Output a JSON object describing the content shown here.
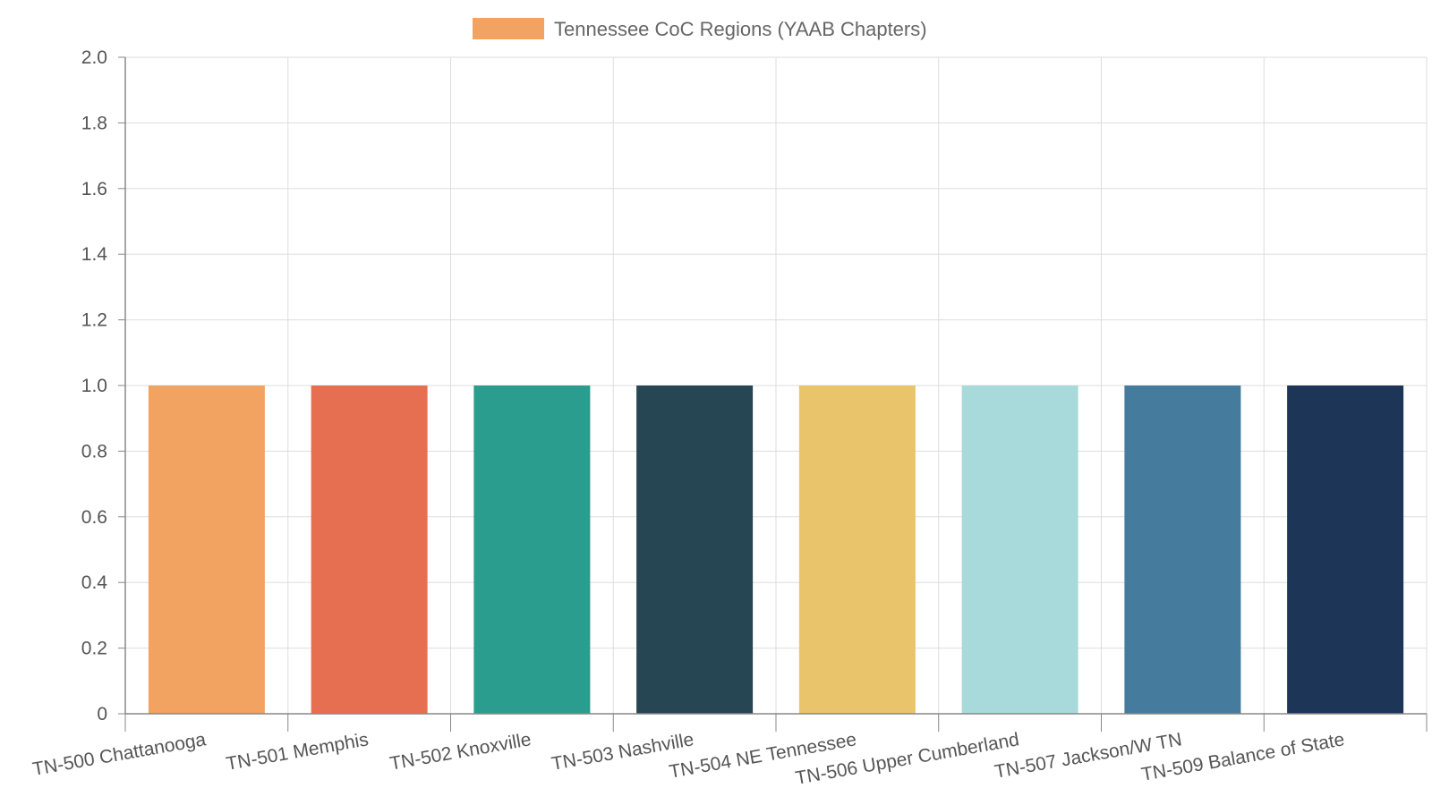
{
  "chart_data": {
    "type": "bar",
    "legend": {
      "label": "Tennessee CoC Regions (YAAB Chapters)",
      "color": "#F2A361",
      "position": "top"
    },
    "categories": [
      "TN-500 Chattanooga",
      "TN-501 Memphis",
      "TN-502 Knoxville",
      "TN-503 Nashville",
      "TN-504 NE Tennessee",
      "TN-506 Upper Cumberland",
      "TN-507 Jackson/W TN",
      "TN-509 Balance of State"
    ],
    "series": [
      {
        "name": "Tennessee CoC Regions (YAAB Chapters)",
        "values": [
          1,
          1,
          1,
          1,
          1,
          1,
          1,
          1
        ]
      }
    ],
    "colors": [
      "#F2A361",
      "#E76F51",
      "#2A9D8F",
      "#264653",
      "#E9C46A",
      "#A8DADC",
      "#457B9D",
      "#1D3557"
    ],
    "ylim": [
      0,
      2
    ],
    "yticks": [
      "0",
      "0.2",
      "0.4",
      "0.6",
      "0.8",
      "1.0",
      "1.2",
      "1.4",
      "1.6",
      "1.8",
      "2.0"
    ],
    "grid": true,
    "xlabel": "",
    "ylabel": ""
  }
}
